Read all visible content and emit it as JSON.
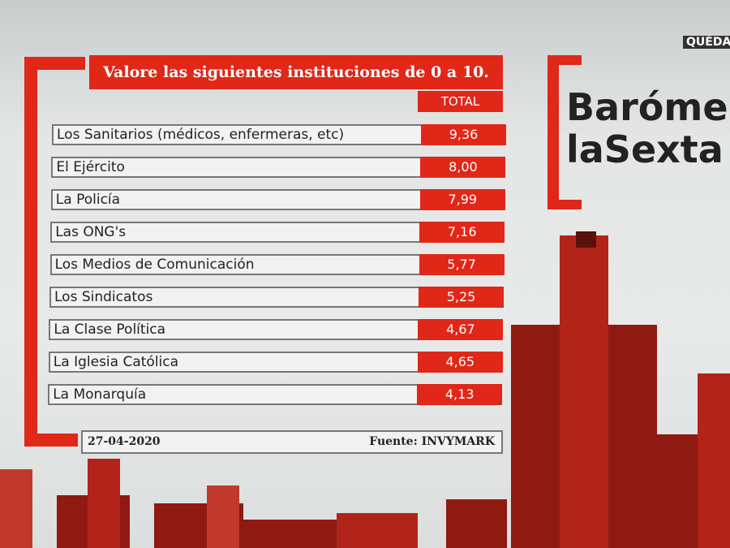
{
  "table": {
    "title": "Valore las siguientes instituciones de 0 a 10.",
    "column_header": "TOTAL",
    "rows": [
      [
        "Los Sanitarios (médicos, enfermeras, etc)",
        "9,36"
      ],
      [
        "El Ejército",
        "8,00"
      ],
      [
        "La Policía",
        "7,99"
      ],
      [
        "Las ONG's",
        "7,16"
      ],
      [
        "Los Medios de Comunicación",
        "5,77"
      ],
      [
        "Los Sindicatos",
        "5,25"
      ],
      [
        "La Clase  Política",
        "4,67"
      ],
      [
        "La Iglesia Católica",
        "4,65"
      ],
      [
        "La Monarquía",
        "4,13"
      ]
    ]
  },
  "footer": {
    "date": "27-04-2020",
    "source": "Fuente: INVYMARK"
  },
  "brand": {
    "line1": "Baróme",
    "line2": "laSexta"
  },
  "ticker": "QUÉDAT"
}
